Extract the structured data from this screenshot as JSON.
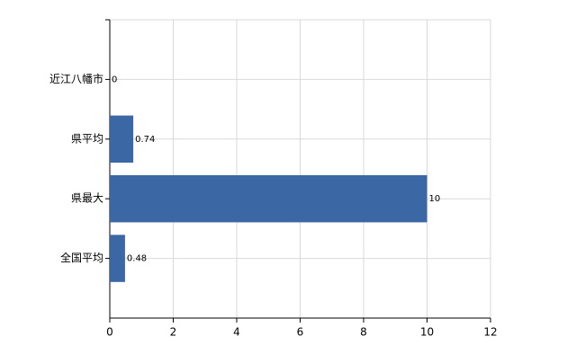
{
  "chart_data": {
    "type": "hbar",
    "categories": [
      "近江八幡市",
      "県平均",
      "県最大",
      "全国平均"
    ],
    "values": [
      0,
      0.74,
      10,
      0.48
    ],
    "color": "#3b68a5",
    "xlim": [
      0,
      12
    ],
    "xticks": [
      0,
      2,
      4,
      6,
      8,
      10,
      12
    ],
    "grid": true
  }
}
